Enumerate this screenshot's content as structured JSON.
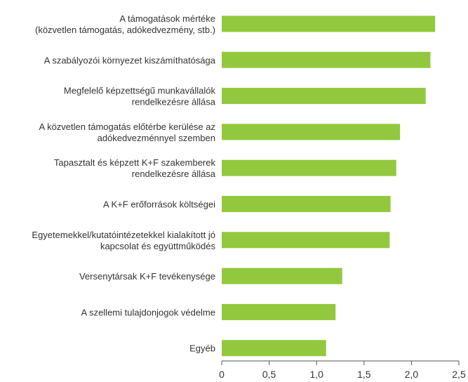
{
  "chart_data": {
    "type": "bar",
    "orientation": "horizontal",
    "title": "",
    "xlabel": "",
    "ylabel": "",
    "xlim": [
      0,
      2.5
    ],
    "grid": false,
    "legend": "none",
    "bar_color": "#92c83e",
    "categories": [
      [
        "A támogatások mértéke",
        "(közvetlen támogatás, adókedvezmény, stb.)"
      ],
      [
        "A szabályozói környezet kiszámíthatósága"
      ],
      [
        "Megfelelő képzettségű munkavállalók",
        "rendelkezésre állása"
      ],
      [
        "A közvetlen támogatás előtérbe kerülése az",
        "adókedvezménnyel szemben"
      ],
      [
        "Tapasztalt és képzett K+F szakemberek",
        "rendelkezésre állása"
      ],
      [
        "A K+F erőforrások költségei"
      ],
      [
        "Egyetemekkel/kutatóintézetekkel kialakított jó",
        "kapcsolat és együttműködés"
      ],
      [
        "Versenytársak K+F tevékenysége"
      ],
      [
        "A szellemi tulajdonjogok védelme"
      ],
      [
        "Egyéb"
      ]
    ],
    "values": [
      2.25,
      2.2,
      2.15,
      1.88,
      1.84,
      1.78,
      1.77,
      1.27,
      1.2,
      1.1
    ],
    "x_ticks": [
      0,
      0.5,
      1.0,
      1.5,
      2.0,
      2.5
    ],
    "x_tick_labels": [
      "0",
      "0,5",
      "1,0",
      "1,5",
      "2,0",
      "2,5"
    ]
  }
}
